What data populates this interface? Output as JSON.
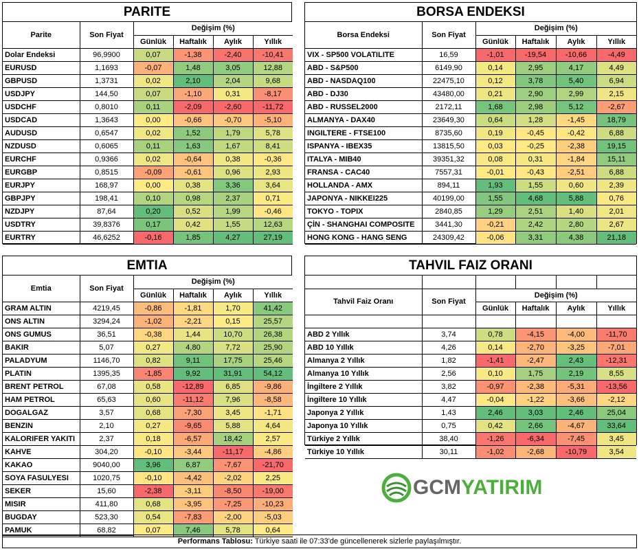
{
  "colors": {
    "green": "#63be7b",
    "yellow": "#ffeb84",
    "red": "#f8696b"
  },
  "parite": {
    "title": "PARITE",
    "h_name": "Parite",
    "h_price": "Son Fiyat",
    "h_change": "Değişim (%)",
    "h_cols": [
      "Günlük",
      "Haftalık",
      "Aylık",
      "Yıllık"
    ],
    "rows": [
      {
        "name": "Dolar Endeksi",
        "price": "96,9900",
        "v": [
          "0,07",
          "-1,38",
          "-2,40",
          "-10,41"
        ]
      },
      {
        "name": "EURUSD",
        "price": "1,1693",
        "v": [
          "-0,07",
          "1,48",
          "3,05",
          "12,88"
        ]
      },
      {
        "name": "GBPUSD",
        "price": "1,3731",
        "v": [
          "0,02",
          "2,10",
          "2,04",
          "9,68"
        ]
      },
      {
        "name": "USDJPY",
        "price": "144,50",
        "v": [
          "0,07",
          "-1,10",
          "0,31",
          "-8,17"
        ]
      },
      {
        "name": "USDCHF",
        "price": "0,8010",
        "v": [
          "0,11",
          "-2,09",
          "-2,60",
          "-11,72"
        ]
      },
      {
        "name": "USDCAD",
        "price": "1,3643",
        "v": [
          "0,00",
          "-0,66",
          "-0,70",
          "-5,10"
        ]
      },
      {
        "name": "AUDUSD",
        "price": "0,6547",
        "v": [
          "0,02",
          "1,52",
          "1,79",
          "5,78"
        ]
      },
      {
        "name": "NZDUSD",
        "price": "0,6065",
        "v": [
          "0,11",
          "1,63",
          "1,67",
          "8,41"
        ]
      },
      {
        "name": "EURCHF",
        "price": "0,9366",
        "v": [
          "0,02",
          "-0,64",
          "0,38",
          "-0,36"
        ]
      },
      {
        "name": "EURGBP",
        "price": "0,8515",
        "v": [
          "-0,09",
          "-0,61",
          "0,96",
          "2,93"
        ]
      },
      {
        "name": "EURJPY",
        "price": "168,97",
        "v": [
          "0,00",
          "0,38",
          "3,36",
          "3,64"
        ]
      },
      {
        "name": "GBPJPY",
        "price": "198,41",
        "v": [
          "0,10",
          "0,98",
          "2,37",
          "0,71"
        ]
      },
      {
        "name": "NZDJPY",
        "price": "87,64",
        "v": [
          "0,20",
          "0,52",
          "1,99",
          "-0,46"
        ]
      },
      {
        "name": "USDTRY",
        "price": "39,8376",
        "v": [
          "0,17",
          "0,42",
          "1,55",
          "12,63"
        ]
      },
      {
        "name": "EURTRY",
        "price": "46,6252",
        "v": [
          "-0,16",
          "1,85",
          "4,27",
          "27,19"
        ]
      }
    ]
  },
  "borsa": {
    "title": "BORSA ENDEKSI",
    "h_name": "Borsa Endeksi",
    "h_price": "Son Fiyat",
    "h_change": "Değişim (%)",
    "h_cols": [
      "Günlük",
      "Haftalık",
      "Aylık",
      "Yıllık"
    ],
    "rows": [
      {
        "name": "VIX  - SP500 VOLATILITE",
        "price": "16,59",
        "v": [
          "-1,01",
          "-19,54",
          "-10,66",
          "-4,49"
        ]
      },
      {
        "name": "ABD - S&P500",
        "price": "6149,90",
        "v": [
          "0,14",
          "2,95",
          "4,17",
          "4,49"
        ]
      },
      {
        "name": "ABD - NASDAQ100",
        "price": "22475,10",
        "v": [
          "0,12",
          "3,78",
          "5,40",
          "6,94"
        ]
      },
      {
        "name": "ABD - DJ30",
        "price": "43480,00",
        "v": [
          "0,21",
          "2,90",
          "2,99",
          "2,15"
        ]
      },
      {
        "name": "ABD - RUSSEL2000",
        "price": "2172,11",
        "v": [
          "1,68",
          "2,98",
          "5,12",
          "-2,67"
        ]
      },
      {
        "name": "ALMANYA - DAX40",
        "price": "23649,30",
        "v": [
          "0,64",
          "1,28",
          "-1,45",
          "18,79"
        ]
      },
      {
        "name": "INGILTERE - FTSE100",
        "price": "8735,60",
        "v": [
          "0,19",
          "-0,45",
          "-0,42",
          "6,88"
        ]
      },
      {
        "name": "ISPANYA - IBEX35",
        "price": "13815,50",
        "v": [
          "0,03",
          "-0,25",
          "-2,38",
          "19,15"
        ]
      },
      {
        "name": "ITALYA - MIB40",
        "price": "39351,32",
        "v": [
          "0,08",
          "0,31",
          "-1,84",
          "15,11"
        ]
      },
      {
        "name": "FRANSA - CAC40",
        "price": "7557,31",
        "v": [
          "-0,01",
          "-0,43",
          "-2,51",
          "6,88"
        ]
      },
      {
        "name": "HOLLANDA - AMX",
        "price": "894,11",
        "v": [
          "1,93",
          "1,55",
          "0,60",
          "2,39"
        ]
      },
      {
        "name": "JAPONYA - NIKKEI225",
        "price": "40199,00",
        "v": [
          "1,55",
          "4,68",
          "5,88",
          "0,76"
        ]
      },
      {
        "name": "TOKYO - TOPIX",
        "price": "2840,85",
        "v": [
          "1,29",
          "2,51",
          "1,40",
          "2,01"
        ]
      },
      {
        "name": "ÇİN - SHANGHAI COMPOSITE",
        "price": "3441,30",
        "v": [
          "-0,21",
          "2,42",
          "2,80",
          "2,67"
        ]
      },
      {
        "name": "HONG KONG - HANG SENG",
        "price": "24309,42",
        "v": [
          "-0,06",
          "3,31",
          "4,38",
          "21,18"
        ]
      }
    ]
  },
  "emtia": {
    "title": "EMTIA",
    "h_name": "Emtia",
    "h_price": "Son Fiyat",
    "h_change": "Değişim (%)",
    "h_cols": [
      "Günlük",
      "Haftalık",
      "Aylık",
      "Yıllık"
    ],
    "rows": [
      {
        "name": "GRAM ALTIN",
        "price": "4219,45",
        "v": [
          "-0,86",
          "-1,81",
          "1,70",
          "41,42"
        ]
      },
      {
        "name": "ONS ALTIN",
        "price": "3294,24",
        "v": [
          "-1,02",
          "-2,21",
          "0,15",
          "25,57"
        ]
      },
      {
        "name": "ONS GUMUS",
        "price": "36,51",
        "v": [
          "-0,38",
          "1,44",
          "10,70",
          "26,38"
        ]
      },
      {
        "name": "BAKIR",
        "price": "5,07",
        "v": [
          "0,27",
          "4,80",
          "7,72",
          "25,90"
        ]
      },
      {
        "name": "PALADYUM",
        "price": "1146,70",
        "v": [
          "0,82",
          "9,11",
          "17,75",
          "25,46"
        ]
      },
      {
        "name": "PLATIN",
        "price": "1395,35",
        "v": [
          "-1,85",
          "9,92",
          "31,91",
          "54,12"
        ]
      },
      {
        "name": "BRENT PETROL",
        "price": "67,08",
        "v": [
          "0,58",
          "-12,89",
          "6,85",
          "-9,86"
        ]
      },
      {
        "name": "HAM PETROL",
        "price": "65,63",
        "v": [
          "0,60",
          "-11,12",
          "7,96",
          "-8,58"
        ]
      },
      {
        "name": "DOGALGAZ",
        "price": "3,57",
        "v": [
          "0,68",
          "-7,30",
          "3,45",
          "-1,71"
        ]
      },
      {
        "name": "BENZIN",
        "price": "2,10",
        "v": [
          "0,27",
          "-9,65",
          "5,88",
          "4,64"
        ]
      },
      {
        "name": "KALORIFER YAKITI",
        "price": "2,37",
        "v": [
          "0,18",
          "-6,57",
          "18,42",
          "2,57"
        ]
      },
      {
        "name": "KAHVE",
        "price": "304,20",
        "v": [
          "-0,10",
          "-3,44",
          "-11,17",
          "-4,86"
        ]
      },
      {
        "name": "KAKAO",
        "price": "9040,00",
        "v": [
          "3,96",
          "6,87",
          "-7,67",
          "-21,70"
        ]
      },
      {
        "name": "SOYA FASULYESI",
        "price": "1020,75",
        "v": [
          "-0,10",
          "-4,42",
          "-2,02",
          "2,25"
        ]
      },
      {
        "name": "SEKER",
        "price": "15,60",
        "v": [
          "-2,38",
          "-3,11",
          "-8,50",
          "-19,00"
        ]
      },
      {
        "name": "MISIR",
        "price": "411,80",
        "v": [
          "0,68",
          "-3,95",
          "-7,25",
          "-10,23"
        ]
      },
      {
        "name": "BUGDAY",
        "price": "523,30",
        "v": [
          "0,54",
          "-7,83",
          "-2,00",
          "-5,03"
        ]
      },
      {
        "name": "PAMUK",
        "price": "68,82",
        "v": [
          "0,07",
          "7,46",
          "5,78",
          "0,64"
        ]
      }
    ]
  },
  "tahvil": {
    "title": "TAHVIL FAIZ ORANI",
    "h_name": "Tahvil Faiz Oranı",
    "h_price": "Son Fiyat",
    "h_change": "Değişim (%)",
    "h_cols": [
      "Günlük",
      "Haftalık",
      "Aylık",
      "Yıllık"
    ],
    "rows": [
      {
        "name": "ABD 2 Yıllık",
        "price": "3,74",
        "v": [
          "0,78",
          "-4,15",
          "-4,00",
          "-11,70"
        ]
      },
      {
        "name": "ABD 10 Yıllık",
        "price": "4,26",
        "v": [
          "0,14",
          "-2,70",
          "-3,25",
          "-7,01"
        ]
      },
      {
        "name": "Almanya 2 Yıllık",
        "price": "1,82",
        "v": [
          "-1,41",
          "-2,47",
          "2,43",
          "-12,31"
        ]
      },
      {
        "name": "Almanya 10 Yıllık",
        "price": "2,56",
        "v": [
          "0,10",
          "1,75",
          "2,19",
          "8,55"
        ]
      },
      {
        "name": "İngiltere 2 Yıllık",
        "price": "3,82",
        "v": [
          "-0,97",
          "-2,38",
          "-5,31",
          "-13,56"
        ]
      },
      {
        "name": "İngiltere 10 Yıllık",
        "price": "4,47",
        "v": [
          "-0,04",
          "-1,22",
          "-3,66",
          "-2,12"
        ]
      },
      {
        "name": "Japonya 2 Yıllık",
        "price": "1,43",
        "v": [
          "2,46",
          "3,03",
          "2,46",
          "25,04"
        ]
      },
      {
        "name": "Japonya 10 Yıllık",
        "price": "0,75",
        "v": [
          "0,42",
          "2,66",
          "-4,67",
          "33,64"
        ]
      },
      {
        "name": "Türkiye 2 Yıllık",
        "price": "38,40",
        "v": [
          "-1,26",
          "-6,34",
          "-7,45",
          "3,45"
        ]
      },
      {
        "name": "Türkiye 10 Yıllık",
        "price": "30,11",
        "v": [
          "-1,02",
          "-2,68",
          "-10,79",
          "3,54"
        ]
      }
    ]
  },
  "logo": {
    "gcm": "GCM",
    "yatirim": "YATIRIM"
  },
  "footer": {
    "bold": "Performans Tablosu:",
    "text": " Türkiye saati ile 07:33'de güncellenerek sizlerle paylaşılmıştır."
  }
}
